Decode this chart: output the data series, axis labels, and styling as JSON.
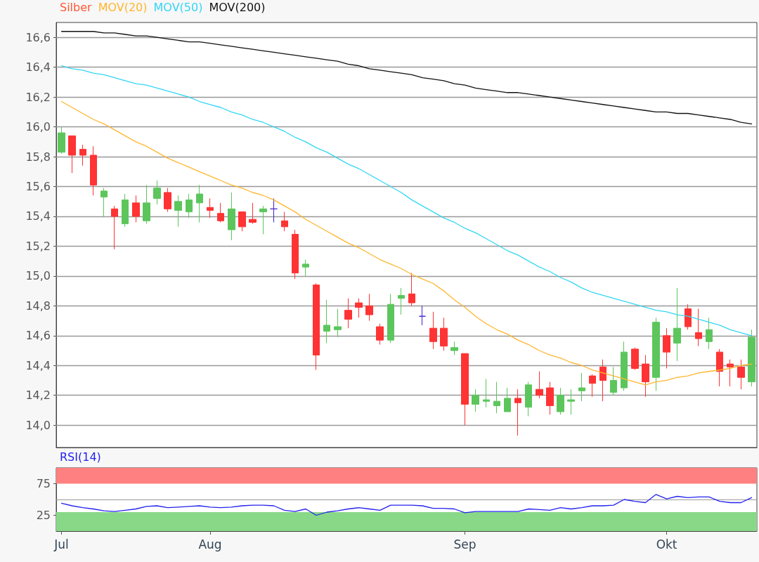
{
  "chart_data": [
    {
      "type": "candlestick",
      "legend": "top left",
      "grid": "y",
      "tick_labels": "y",
      "categories": [
        null,
        null,
        null,
        null,
        null,
        null,
        null,
        null,
        null,
        null,
        null,
        null,
        null,
        null,
        null,
        null,
        null,
        null,
        null,
        null,
        null,
        null,
        null,
        null,
        null,
        null,
        null,
        null,
        null,
        null,
        null,
        null,
        null,
        null,
        null,
        null,
        null,
        null,
        null,
        null,
        null,
        null,
        null,
        null,
        null,
        null,
        null,
        null,
        null,
        null,
        null,
        null,
        null,
        null,
        null,
        null,
        null,
        null,
        null,
        null,
        null,
        null,
        null,
        null,
        null,
        null
      ],
      "ylim": [
        13.85,
        16.7
      ],
      "yticks": [
        {
          "value": 14.0,
          "label": "14,0"
        },
        {
          "value": 14.2,
          "label": "14,2"
        },
        {
          "value": 14.4,
          "label": "14,4"
        },
        {
          "value": 14.6,
          "label": "14,6"
        },
        {
          "value": 14.8,
          "label": "14,8"
        },
        {
          "value": 15.0,
          "label": "15,0"
        },
        {
          "value": 15.2,
          "label": "15,2"
        },
        {
          "value": 15.4,
          "label": "15,4"
        },
        {
          "value": 15.6,
          "label": "15,6"
        },
        {
          "value": 15.8,
          "label": "15,8"
        },
        {
          "value": 16.0,
          "label": "16,0"
        },
        {
          "value": 16.2,
          "label": "16,2"
        },
        {
          "value": 16.4,
          "label": "16,4"
        },
        {
          "value": 16.6,
          "label": "16,6"
        }
      ],
      "series": [
        {
          "name": "Silber",
          "color": "#ff5a36",
          "colors": [
            "#5cc65c",
            "#ff3333",
            "#ff3333",
            "#ff3333",
            "#5cc65c",
            "#ff3333",
            "#5cc65c",
            "#ff3333",
            "#5cc65c",
            "#5cc65c",
            "#ff3333",
            "#5cc65c",
            "#5cc65c",
            "#5cc65c",
            "#ff3333",
            "#ff3333",
            "#5cc65c",
            "#ff3333",
            "#ff3333",
            "#5cc65c",
            "#4422cc",
            "#ff3333",
            "#ff3333",
            "#5cc65c",
            "#ff3333",
            "#5cc65c",
            "#5cc65c",
            "#ff3333",
            "#ff3333",
            "#ff3333",
            "#ff3333",
            "#5cc65c",
            "#5cc65c",
            "#ff3333",
            "#4422cc",
            "#ff3333",
            "#ff3333",
            "#5cc65c",
            "#ff3333",
            "#5cc65c",
            "#5cc65c",
            "#5cc65c",
            "#5cc65c",
            "#ff3333",
            "#5cc65c",
            "#ff3333",
            "#ff3333",
            "#5cc65c",
            "#5cc65c",
            "#5cc65c",
            "#ff3333",
            "#ff3333",
            "#5cc65c",
            "#5cc65c",
            "#ff3333",
            "#ff3333",
            "#5cc65c",
            "#ff3333",
            "#5cc65c",
            "#ff3333",
            "#ff3333",
            "#5cc65c",
            "#ff3333",
            "#ff3333",
            "#ff3333",
            "#5cc65c"
          ],
          "ohlc": [
            [
              15.83,
              16.0,
              15.82,
              15.96
            ],
            [
              15.94,
              15.94,
              15.69,
              15.81
            ],
            [
              15.85,
              15.88,
              15.74,
              15.81
            ],
            [
              15.81,
              15.87,
              15.54,
              15.61
            ],
            [
              15.53,
              15.59,
              15.4,
              15.57
            ],
            [
              15.45,
              15.47,
              15.18,
              15.4
            ],
            [
              15.35,
              15.55,
              15.33,
              15.51
            ],
            [
              15.49,
              15.54,
              15.36,
              15.4
            ],
            [
              15.37,
              15.61,
              15.35,
              15.49
            ],
            [
              15.52,
              15.64,
              15.48,
              15.59
            ],
            [
              15.56,
              15.59,
              15.43,
              15.45
            ],
            [
              15.44,
              15.54,
              15.33,
              15.5
            ],
            [
              15.43,
              15.55,
              15.39,
              15.51
            ],
            [
              15.49,
              15.61,
              15.36,
              15.55
            ],
            [
              15.46,
              15.52,
              15.39,
              15.44
            ],
            [
              15.42,
              15.49,
              15.36,
              15.37
            ],
            [
              15.31,
              15.56,
              15.24,
              15.45
            ],
            [
              15.43,
              15.43,
              15.3,
              15.33
            ],
            [
              15.38,
              15.49,
              15.35,
              15.36
            ],
            [
              15.43,
              15.47,
              15.28,
              15.45
            ],
            [
              15.45,
              15.52,
              15.36,
              15.45
            ],
            [
              15.37,
              15.43,
              15.3,
              15.33
            ],
            [
              15.28,
              15.31,
              14.98,
              15.02
            ],
            [
              15.06,
              15.11,
              15.0,
              15.08
            ],
            [
              14.94,
              14.95,
              14.37,
              14.47
            ],
            [
              14.63,
              14.84,
              14.55,
              14.67
            ],
            [
              14.64,
              14.78,
              14.59,
              14.66
            ],
            [
              14.77,
              14.85,
              14.65,
              14.71
            ],
            [
              14.82,
              14.85,
              14.72,
              14.79
            ],
            [
              14.8,
              14.88,
              14.7,
              14.74
            ],
            [
              14.66,
              14.68,
              14.54,
              14.57
            ],
            [
              14.57,
              14.88,
              14.55,
              14.81
            ],
            [
              14.85,
              14.92,
              14.74,
              14.87
            ],
            [
              14.88,
              15.02,
              14.8,
              14.82
            ],
            [
              14.73,
              14.8,
              14.67,
              14.73
            ],
            [
              14.65,
              14.76,
              14.51,
              14.56
            ],
            [
              14.65,
              14.72,
              14.5,
              14.53
            ],
            [
              14.5,
              14.56,
              14.47,
              14.52
            ],
            [
              14.48,
              14.48,
              14.0,
              14.14
            ],
            [
              14.14,
              14.24,
              14.09,
              14.2
            ],
            [
              14.16,
              14.31,
              14.12,
              14.17
            ],
            [
              14.13,
              14.29,
              14.08,
              14.16
            ],
            [
              14.09,
              14.25,
              14.09,
              14.18
            ],
            [
              14.18,
              14.24,
              13.93,
              14.15
            ],
            [
              14.12,
              14.29,
              14.06,
              14.27
            ],
            [
              14.24,
              14.36,
              14.18,
              14.2
            ],
            [
              14.25,
              14.29,
              14.07,
              14.13
            ],
            [
              14.09,
              14.25,
              14.07,
              14.2
            ],
            [
              14.16,
              14.24,
              14.07,
              14.17
            ],
            [
              14.23,
              14.35,
              14.16,
              14.25
            ],
            [
              14.33,
              14.34,
              14.19,
              14.28
            ],
            [
              14.39,
              14.44,
              14.16,
              14.3
            ],
            [
              14.22,
              14.39,
              14.2,
              14.3
            ],
            [
              14.25,
              14.56,
              14.23,
              14.49
            ],
            [
              14.51,
              14.52,
              14.37,
              14.38
            ],
            [
              14.41,
              14.47,
              14.19,
              14.29
            ],
            [
              14.32,
              14.72,
              14.23,
              14.69
            ],
            [
              14.6,
              14.65,
              14.38,
              14.49
            ],
            [
              14.55,
              14.92,
              14.43,
              14.65
            ],
            [
              14.78,
              14.81,
              14.64,
              14.66
            ],
            [
              14.62,
              14.78,
              14.53,
              14.58
            ],
            [
              14.56,
              14.72,
              14.51,
              14.64
            ],
            [
              14.49,
              14.51,
              14.26,
              14.36
            ],
            [
              14.41,
              14.44,
              14.26,
              14.39
            ],
            [
              14.39,
              14.44,
              14.24,
              14.32
            ],
            [
              14.29,
              14.64,
              14.26,
              14.59
            ]
          ]
        },
        {
          "name": "MOV(20)",
          "type": "line",
          "color": "#ffb62e",
          "values": [
            16.17,
            16.13,
            16.09,
            16.05,
            16.02,
            15.98,
            15.94,
            15.9,
            15.87,
            15.83,
            15.79,
            15.76,
            15.73,
            15.7,
            15.67,
            15.64,
            15.61,
            15.59,
            15.56,
            15.54,
            15.51,
            15.47,
            15.43,
            15.38,
            15.34,
            15.3,
            15.26,
            15.22,
            15.19,
            15.15,
            15.11,
            15.08,
            15.05,
            15.01,
            14.98,
            14.95,
            14.9,
            14.84,
            14.79,
            14.73,
            14.68,
            14.64,
            14.61,
            14.57,
            14.54,
            14.5,
            14.47,
            14.45,
            14.42,
            14.4,
            14.37,
            14.35,
            14.33,
            14.31,
            14.29,
            14.27,
            14.29,
            14.3,
            14.32,
            14.33,
            14.35,
            14.36,
            14.37,
            14.38,
            14.4,
            14.41
          ]
        },
        {
          "name": "MOV(50)",
          "type": "line",
          "color": "#33d6f5",
          "values": [
            16.41,
            16.39,
            16.38,
            16.36,
            16.35,
            16.33,
            16.31,
            16.29,
            16.28,
            16.26,
            16.24,
            16.22,
            16.2,
            16.17,
            16.15,
            16.13,
            16.1,
            16.08,
            16.05,
            16.03,
            16.0,
            15.97,
            15.93,
            15.9,
            15.86,
            15.83,
            15.79,
            15.75,
            15.72,
            15.68,
            15.64,
            15.6,
            15.56,
            15.51,
            15.47,
            15.43,
            15.39,
            15.36,
            15.32,
            15.29,
            15.25,
            15.21,
            15.17,
            15.14,
            15.1,
            15.06,
            15.03,
            14.99,
            14.96,
            14.92,
            14.89,
            14.87,
            14.85,
            14.83,
            14.81,
            14.79,
            14.77,
            14.76,
            14.74,
            14.73,
            14.71,
            14.69,
            14.67,
            14.64,
            14.62,
            14.6
          ]
        },
        {
          "name": "MOV(200)",
          "type": "line",
          "color": "#111111",
          "values": [
            16.64,
            16.64,
            16.64,
            16.64,
            16.63,
            16.63,
            16.62,
            16.61,
            16.61,
            16.6,
            16.59,
            16.58,
            16.57,
            16.57,
            16.56,
            16.55,
            16.54,
            16.53,
            16.52,
            16.51,
            16.5,
            16.49,
            16.48,
            16.47,
            16.46,
            16.45,
            16.44,
            16.42,
            16.41,
            16.39,
            16.38,
            16.37,
            16.36,
            16.35,
            16.33,
            16.32,
            16.31,
            16.29,
            16.28,
            16.26,
            16.25,
            16.24,
            16.23,
            16.23,
            16.22,
            16.21,
            16.2,
            16.19,
            16.18,
            16.17,
            16.16,
            16.15,
            16.14,
            16.13,
            16.12,
            16.11,
            16.1,
            16.1,
            16.09,
            16.09,
            16.08,
            16.07,
            16.06,
            16.05,
            16.03,
            16.02
          ]
        }
      ]
    },
    {
      "type": "line",
      "legend": "top left",
      "grid": false,
      "categories": [
        "Jul",
        null,
        null,
        null,
        null,
        null,
        null,
        null,
        null,
        null,
        null,
        null,
        null,
        null,
        "Aug",
        null,
        null,
        null,
        null,
        null,
        null,
        null,
        null,
        null,
        null,
        null,
        null,
        null,
        null,
        null,
        null,
        null,
        null,
        null,
        null,
        null,
        null,
        null,
        "Sep",
        null,
        null,
        null,
        null,
        null,
        null,
        null,
        null,
        null,
        null,
        null,
        null,
        null,
        null,
        null,
        null,
        null,
        null,
        "Okt",
        null,
        null,
        null,
        null,
        null,
        null,
        null,
        null
      ],
      "ylim": [
        0,
        100
      ],
      "yticks": [
        25,
        75
      ],
      "bands": [
        {
          "axis": "y",
          "from": 75,
          "to": 100,
          "color": "#ff8080"
        },
        {
          "axis": "y",
          "from": 0,
          "to": 30,
          "color": "#88d888"
        }
      ],
      "ref_lines": [
        {
          "axis": "y",
          "value": 50,
          "color": "#999999"
        }
      ],
      "series": [
        {
          "name": "RSI(14)",
          "color": "#2222ee",
          "values": [
            44,
            40,
            37,
            35,
            32,
            31,
            33,
            35,
            39,
            40,
            37,
            38,
            39,
            40,
            38,
            37,
            38,
            40,
            41,
            41,
            40,
            33,
            31,
            35,
            25,
            30,
            32,
            35,
            37,
            35,
            33,
            41,
            41,
            41,
            40,
            36,
            36,
            35,
            29,
            31,
            31,
            31,
            31,
            31,
            35,
            34,
            33,
            37,
            35,
            37,
            40,
            40,
            41,
            50,
            47,
            45,
            58,
            51,
            55,
            53,
            54,
            54,
            47,
            45,
            45,
            53
          ]
        }
      ]
    }
  ]
}
